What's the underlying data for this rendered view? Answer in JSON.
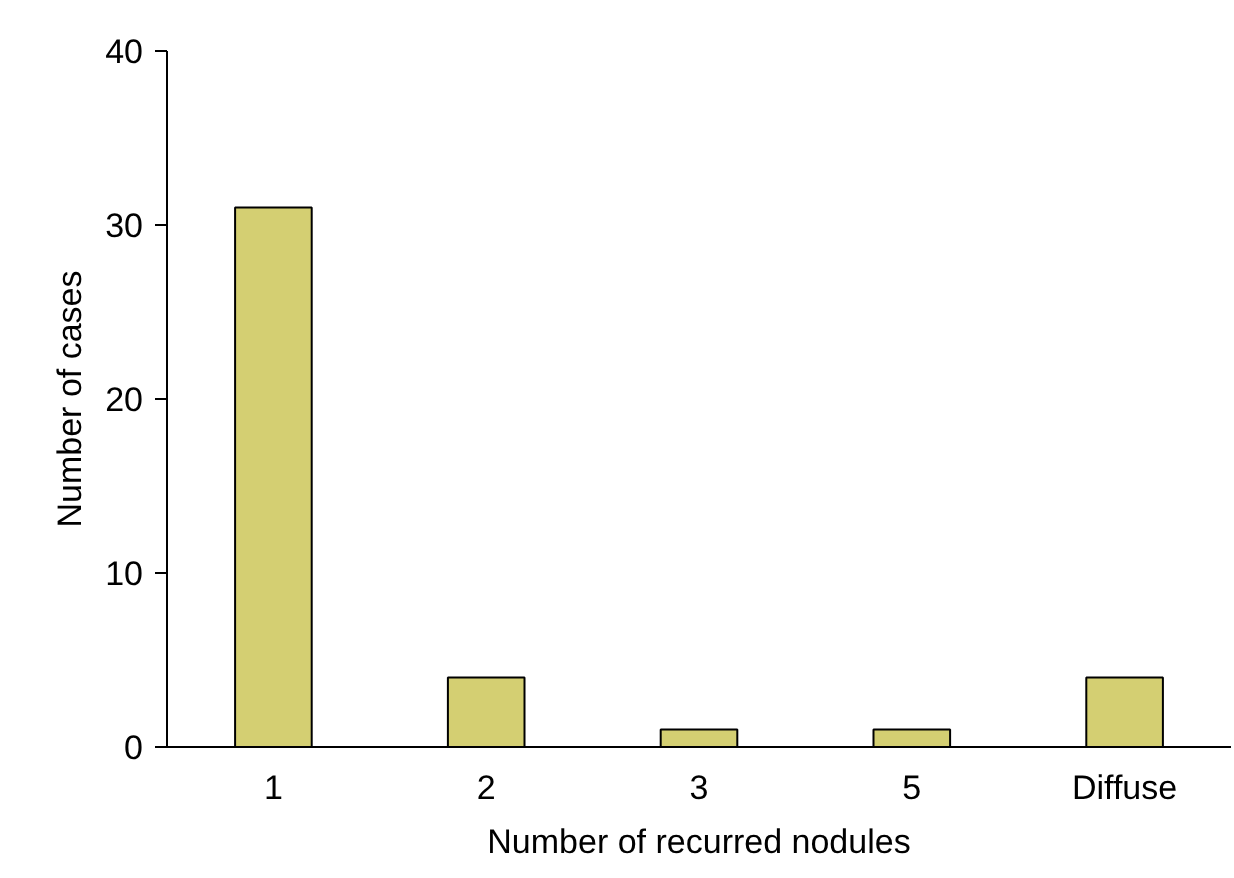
{
  "chart_data": {
    "type": "bar",
    "xlabel": "Number of recurred nodules",
    "ylabel": "Number of cases",
    "categories": [
      "1",
      "2",
      "3",
      "5",
      "Diffuse"
    ],
    "values": [
      31,
      4,
      1,
      1,
      4
    ],
    "color": "#d4cf72",
    "ylim": [
      0,
      40
    ],
    "yticks": [
      0,
      10,
      20,
      30,
      40
    ],
    "grid": false
  }
}
